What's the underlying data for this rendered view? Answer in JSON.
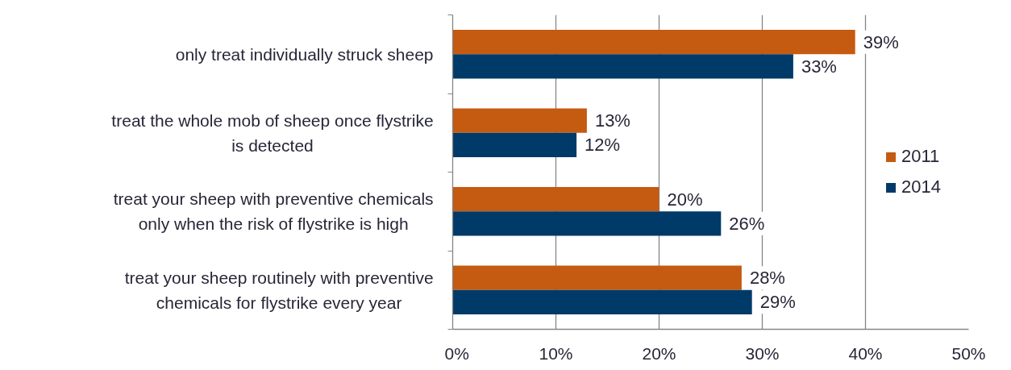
{
  "chart_data": {
    "type": "bar",
    "orientation": "horizontal",
    "categories": [
      "only treat individually struck sheep",
      "treat the whole mob of sheep once flystrike is detected",
      "treat your sheep with preventive chemicals only when the risk of flystrike is high",
      "treat your sheep routinely with preventive chemicals for flystrike every year"
    ],
    "series": [
      {
        "name": "2011",
        "color": "#c55a11",
        "values": [
          39,
          13,
          20,
          28
        ],
        "value_labels": [
          "39%",
          "13%",
          "20%",
          "28%"
        ]
      },
      {
        "name": "2014",
        "color": "#003a68",
        "values": [
          33,
          12,
          26,
          29
        ],
        "value_labels": [
          "33%",
          "12%",
          "26%",
          "29%"
        ]
      }
    ],
    "xlim": [
      0,
      50
    ],
    "xticks": [
      {
        "value": 0,
        "label": "0%"
      },
      {
        "value": 10,
        "label": "10%"
      },
      {
        "value": 20,
        "label": "20%"
      },
      {
        "value": 30,
        "label": "30%"
      },
      {
        "value": 40,
        "label": "40%"
      },
      {
        "value": 50,
        "label": "50%"
      }
    ],
    "grid": "x",
    "legend": "right"
  }
}
